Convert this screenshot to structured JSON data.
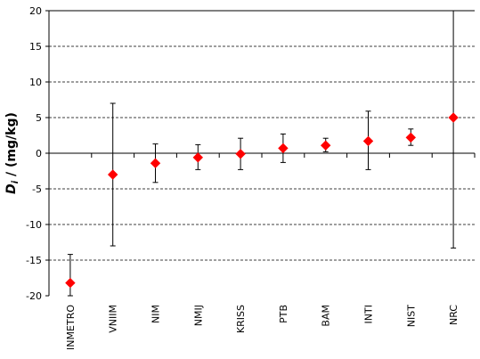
{
  "chart_data": {
    "type": "scatter",
    "ylabel_symbol": "D",
    "ylabel_subscript": "i",
    "ylabel_rest": " / (mg/kg)",
    "categories": [
      "INMETRO",
      "VNIIM",
      "NIM",
      "NMIJ",
      "KRISS",
      "PTB",
      "BAM",
      "INTI",
      "NIST",
      "NRC"
    ],
    "values": [
      -18.2,
      -3.0,
      -1.4,
      -0.6,
      -0.1,
      0.7,
      1.1,
      1.7,
      2.2,
      5.0
    ],
    "err_upper": [
      -14.2,
      7.0,
      1.3,
      1.2,
      2.1,
      2.7,
      2.1,
      5.9,
      3.4,
      20.0
    ],
    "err_lower": [
      -20.0,
      -13.0,
      -4.1,
      -2.3,
      -2.3,
      -1.3,
      0.2,
      -2.3,
      1.1,
      -13.3
    ],
    "ylim": [
      -20,
      20
    ],
    "yticks": [
      "-20",
      "-15",
      "-10",
      "-5",
      "0",
      "5",
      "10",
      "15",
      "20"
    ],
    "grid": true,
    "marker_color": "#ff0000",
    "marker_shape": "diamond"
  }
}
